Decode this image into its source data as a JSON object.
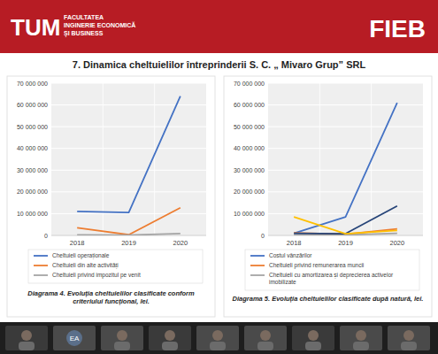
{
  "slide": {
    "logo": "TUM",
    "logo_lines": [
      "FACULTATEA",
      "INGINERIE ECONOMICĂ",
      "ŞI BUSINESS"
    ],
    "badge": "FIEB",
    "title": "7. Dinamica cheltuielilor întreprinderii S. C. „ Mivaro Grup” SRL"
  },
  "participants": [
    "EA"
  ],
  "chart_data": [
    {
      "type": "line",
      "categories": [
        "2018",
        "2019",
        "2020"
      ],
      "ylim": [
        0,
        70000000
      ],
      "yticks": [
        0,
        {
          "value": 10000000,
          "label": "10 000 000"
        },
        {
          "value": 20000000,
          "label": "20 000 000"
        },
        {
          "value": 30000000,
          "label": "30 000 000"
        },
        {
          "value": 40000000,
          "label": "40 000 000"
        },
        {
          "value": 50000000,
          "label": "50 000 000"
        },
        {
          "value": 60000000,
          "label": "60 000 000"
        },
        {
          "value": 70000000,
          "label": "70 000 000"
        }
      ],
      "grid": true,
      "legend": "bottom",
      "caption": "Diagrama 4. Evoluția cheltuielilor clasificate conform criteriului funcțional, lei.",
      "series": [
        {
          "name": "Cheltuieli operaționale",
          "color": "#4472c4",
          "values": [
            11000000,
            10500000,
            64000000
          ]
        },
        {
          "name": "Cheltuieli din alte activități",
          "color": "#ed7d31",
          "values": [
            3500000,
            300000,
            12700000
          ]
        },
        {
          "name": "Cheltuieli privind impozitul pe  venit",
          "color": "#a5a5a5",
          "values": [
            200000,
            100000,
            900000
          ]
        }
      ]
    },
    {
      "type": "line",
      "categories": [
        "2018",
        "2019",
        "2020"
      ],
      "ylim": [
        0,
        70000000
      ],
      "yticks": [
        0,
        {
          "value": 10000000,
          "label": "10 000 000"
        },
        {
          "value": 20000000,
          "label": "20 000 000"
        },
        {
          "value": 30000000,
          "label": "30 000 000"
        },
        {
          "value": 40000000,
          "label": "40 000 000"
        },
        {
          "value": 50000000,
          "label": "50 000 000"
        },
        {
          "value": 60000000,
          "label": "60 000 000"
        },
        {
          "value": 70000000,
          "label": "70 000 000"
        }
      ],
      "grid": true,
      "legend": "bottom",
      "caption": "Diagrama 5. Evoluția cheltuielilor clasificate după natură, lei.",
      "series": [
        {
          "name": "Costul vânzărilor",
          "color": "#4472c4",
          "values": [
            1000000,
            8500000,
            61000000
          ]
        },
        {
          "name": "Cheltuieli privind remunerarea muncii",
          "color": "#ed7d31",
          "values": [
            1200000,
            500000,
            3000000
          ]
        },
        {
          "name": "Cheltuieli cu amortizarea și deprecierea activelor imobilizate",
          "color": "#a5a5a5",
          "values": [
            300000,
            200000,
            1000000
          ]
        },
        {
          "color": "#264478",
          "values": [
            1000000,
            800000,
            13500000
          ]
        },
        {
          "color": "#ffc000",
          "values": [
            8500000,
            800000,
            2300000
          ]
        }
      ]
    }
  ]
}
